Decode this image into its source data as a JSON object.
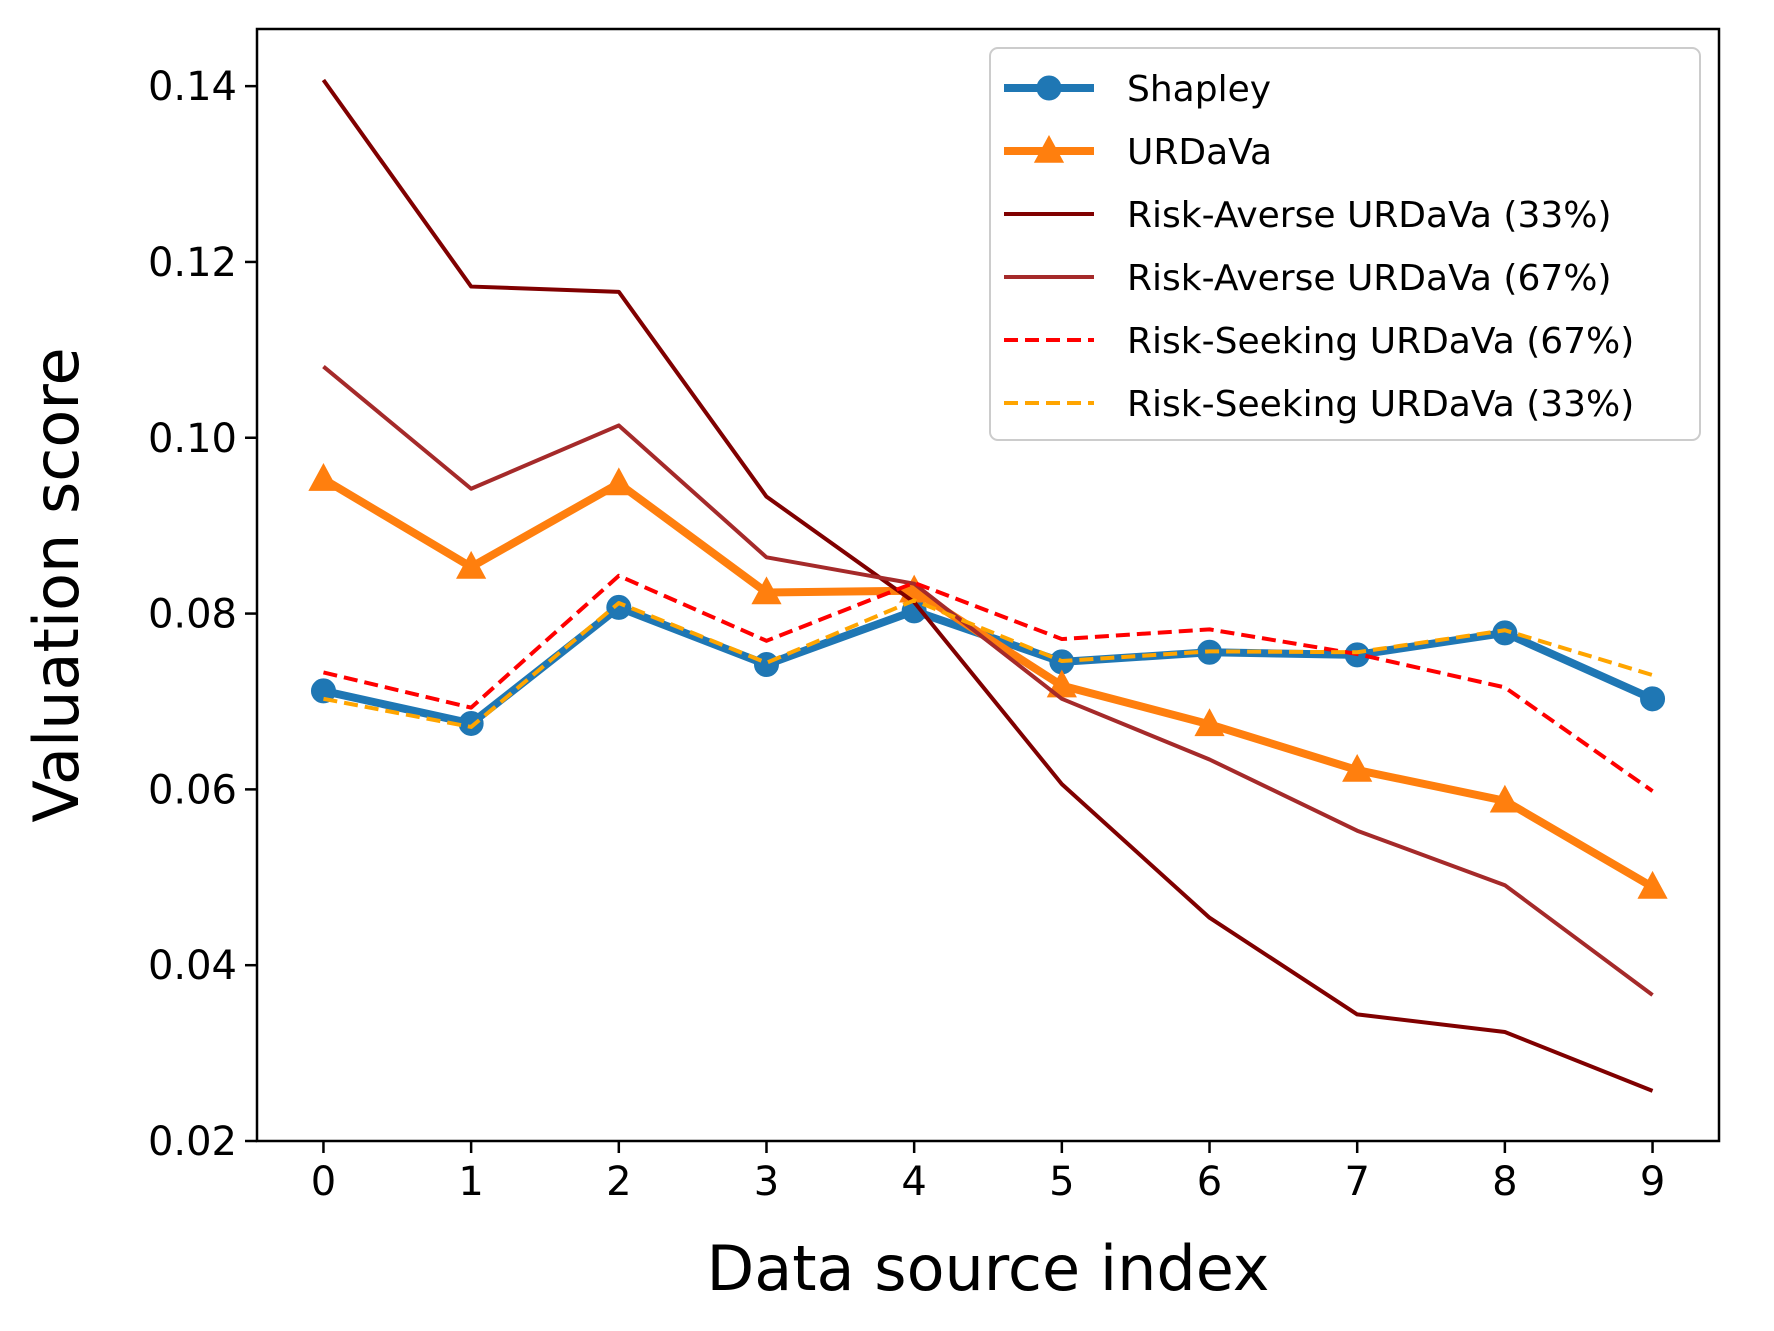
{
  "chart_data": {
    "type": "line",
    "title": "",
    "xlabel": "Data source index",
    "ylabel": "Valuation score",
    "x": [
      0,
      1,
      2,
      3,
      4,
      5,
      6,
      7,
      8,
      9
    ],
    "xlim": [
      -0.45,
      9.45
    ],
    "ylim": [
      0.02,
      0.1465
    ],
    "xticks": [
      "0",
      "1",
      "2",
      "3",
      "4",
      "5",
      "6",
      "7",
      "8",
      "9"
    ],
    "yticks": [
      "0.02",
      "0.04",
      "0.06",
      "0.08",
      "0.10",
      "0.12",
      "0.14"
    ],
    "grid": false,
    "legend_position": "upper right",
    "series": [
      {
        "name": "Shapley",
        "color": "#1f77b4",
        "style": "solid",
        "marker": "circle",
        "width": "thick",
        "values": [
          0.0712,
          0.0675,
          0.0807,
          0.0742,
          0.0803,
          0.0745,
          0.0756,
          0.0753,
          0.0778,
          0.0703
        ]
      },
      {
        "name": "URDaVa",
        "color": "#ff7f0e",
        "style": "solid",
        "marker": "triangle",
        "width": "thick",
        "values": [
          0.0953,
          0.0853,
          0.0948,
          0.0824,
          0.0826,
          0.0718,
          0.0674,
          0.0622,
          0.0587,
          0.0489
        ]
      },
      {
        "name": "Risk-Averse URDaVa (33%)",
        "color": "#800000",
        "style": "solid",
        "marker": "none",
        "width": "thin",
        "values": [
          0.1407,
          0.1172,
          0.1166,
          0.0933,
          0.0813,
          0.0606,
          0.0454,
          0.0344,
          0.0324,
          0.0257
        ]
      },
      {
        "name": "Risk-Averse URDaVa (67%)",
        "color": "#a52a2a",
        "style": "solid",
        "marker": "none",
        "width": "thin",
        "values": [
          0.1081,
          0.0942,
          0.1014,
          0.0864,
          0.0834,
          0.0703,
          0.0634,
          0.0553,
          0.0491,
          0.0366
        ]
      },
      {
        "name": "Risk-Seeking URDaVa (67%)",
        "color": "#ff0000",
        "style": "dashed",
        "marker": "none",
        "width": "thin",
        "values": [
          0.0733,
          0.0693,
          0.0843,
          0.0769,
          0.0835,
          0.0771,
          0.0782,
          0.0754,
          0.0716,
          0.0598
        ]
      },
      {
        "name": "Risk-Seeking URDaVa (33%)",
        "color": "#ffa500",
        "style": "dashed",
        "marker": "none",
        "width": "thin",
        "values": [
          0.0703,
          0.0671,
          0.0812,
          0.0744,
          0.0815,
          0.0746,
          0.0757,
          0.0756,
          0.0781,
          0.073
        ]
      }
    ]
  }
}
